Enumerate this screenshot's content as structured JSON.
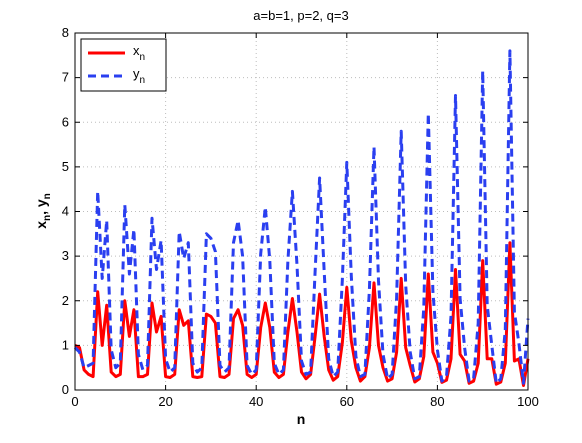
{
  "chart_data": {
    "type": "line",
    "title": "a=b=1, p=2, q=3",
    "xlabel": "n",
    "ylabel_main": "x",
    "ylabel_sub1": "n",
    "ylabel_sep": ", y",
    "ylabel_sub2": "n",
    "xlim": [
      0,
      100
    ],
    "ylim": [
      0,
      8
    ],
    "xticks": [
      0,
      20,
      40,
      60,
      80,
      100
    ],
    "yticks": [
      0,
      1,
      2,
      3,
      4,
      5,
      6,
      7,
      8
    ],
    "grid": "dotted",
    "legend_position": "top-left",
    "series": [
      {
        "name": "x",
        "name_sub": "n",
        "color": "#ff0000",
        "style": "solid",
        "x": [
          0,
          1,
          2,
          3,
          4,
          5,
          6,
          7,
          8,
          9,
          10,
          11,
          12,
          13,
          14,
          15,
          16,
          17,
          18,
          19,
          20,
          21,
          22,
          23,
          24,
          25,
          26,
          27,
          28,
          29,
          30,
          31,
          32,
          33,
          34,
          35,
          36,
          37,
          38,
          39,
          40,
          41,
          42,
          43,
          44,
          45,
          46,
          47,
          48,
          49,
          50,
          51,
          52,
          53,
          54,
          55,
          56,
          57,
          58,
          59,
          60,
          61,
          62,
          63,
          64,
          65,
          66,
          67,
          68,
          69,
          70,
          71,
          72,
          73,
          74,
          75,
          76,
          77,
          78,
          79,
          80,
          81,
          82,
          83,
          84,
          85,
          86,
          87,
          88,
          89,
          90,
          91,
          92,
          93,
          94,
          95,
          96,
          97,
          98,
          99,
          100
        ],
        "values": [
          1.0,
          0.95,
          0.45,
          0.35,
          0.3,
          2.2,
          1.0,
          1.9,
          0.4,
          0.3,
          0.35,
          2.0,
          1.2,
          1.8,
          0.3,
          0.3,
          0.35,
          1.95,
          1.3,
          1.65,
          0.3,
          0.28,
          0.35,
          1.8,
          1.45,
          1.55,
          0.3,
          0.28,
          0.3,
          1.7,
          1.65,
          1.5,
          0.3,
          0.28,
          0.35,
          1.6,
          1.8,
          1.45,
          0.35,
          0.28,
          0.35,
          1.4,
          1.95,
          1.4,
          0.4,
          0.28,
          0.35,
          1.3,
          2.05,
          1.3,
          0.4,
          0.25,
          0.35,
          1.2,
          2.15,
          1.2,
          0.45,
          0.22,
          0.3,
          1.05,
          2.3,
          1.1,
          0.5,
          0.2,
          0.3,
          0.95,
          2.4,
          1.0,
          0.5,
          0.2,
          0.25,
          0.85,
          2.5,
          0.95,
          0.55,
          0.18,
          0.25,
          0.75,
          2.6,
          0.85,
          0.6,
          0.17,
          0.22,
          0.7,
          2.7,
          0.8,
          0.65,
          0.15,
          0.2,
          0.6,
          2.9,
          0.7,
          0.7,
          0.13,
          0.18,
          0.6,
          3.3,
          0.65,
          0.7,
          0.1,
          0.7
        ]
      },
      {
        "name": "y",
        "name_sub": "n",
        "color": "#2a3ff0",
        "style": "dashed",
        "x": [
          0,
          1,
          2,
          3,
          4,
          5,
          6,
          7,
          8,
          9,
          10,
          11,
          12,
          13,
          14,
          15,
          16,
          17,
          18,
          19,
          20,
          21,
          22,
          23,
          24,
          25,
          26,
          27,
          28,
          29,
          30,
          31,
          32,
          33,
          34,
          35,
          36,
          37,
          38,
          39,
          40,
          41,
          42,
          43,
          44,
          45,
          46,
          47,
          48,
          49,
          50,
          51,
          52,
          53,
          54,
          55,
          56,
          57,
          58,
          59,
          60,
          61,
          62,
          63,
          64,
          65,
          66,
          67,
          68,
          69,
          70,
          71,
          72,
          73,
          74,
          75,
          76,
          77,
          78,
          79,
          80,
          81,
          82,
          83,
          84,
          85,
          86,
          87,
          88,
          89,
          90,
          91,
          92,
          93,
          94,
          95,
          96,
          97,
          98,
          99,
          100
        ],
        "values": [
          0.95,
          0.85,
          0.5,
          0.55,
          0.6,
          4.45,
          2.5,
          3.8,
          0.9,
          0.5,
          0.6,
          4.15,
          2.6,
          3.6,
          0.8,
          0.45,
          0.55,
          3.85,
          2.7,
          3.35,
          0.7,
          0.4,
          0.5,
          3.55,
          2.95,
          3.3,
          0.6,
          0.4,
          0.5,
          3.5,
          3.4,
          3.1,
          0.55,
          0.4,
          0.5,
          3.3,
          3.8,
          3.0,
          0.55,
          0.35,
          0.45,
          3.05,
          4.1,
          2.9,
          0.6,
          0.35,
          0.45,
          2.9,
          4.45,
          2.8,
          0.65,
          0.35,
          0.4,
          2.65,
          4.75,
          2.65,
          0.7,
          0.3,
          0.4,
          2.45,
          5.1,
          2.55,
          0.75,
          0.3,
          0.35,
          2.25,
          5.45,
          2.45,
          0.8,
          0.25,
          0.35,
          2.05,
          5.8,
          2.35,
          0.85,
          0.25,
          0.3,
          1.85,
          6.2,
          2.2,
          0.9,
          0.2,
          0.3,
          1.65,
          6.6,
          2.05,
          0.95,
          0.2,
          0.25,
          1.5,
          7.15,
          1.9,
          1.0,
          0.15,
          0.25,
          1.35,
          7.6,
          1.75,
          1.05,
          0.15,
          1.6
        ]
      }
    ]
  }
}
